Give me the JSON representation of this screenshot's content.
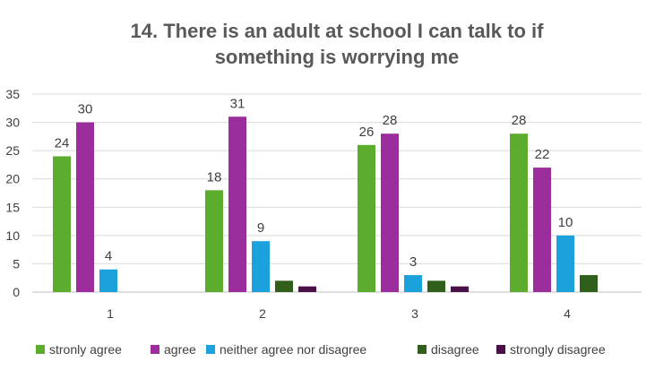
{
  "chart_data": {
    "type": "bar",
    "title_lines": [
      "14. There is an adult at school I can talk to if",
      "something is worrying me"
    ],
    "categories": [
      "1",
      "2",
      "3",
      "4"
    ],
    "ylim": [
      0,
      35
    ],
    "yticks": [
      0,
      5,
      10,
      15,
      20,
      25,
      30,
      35
    ],
    "grid": true,
    "legend_position": "bottom",
    "series": [
      {
        "name": "stronly agree",
        "color": "#5cac2e",
        "values": [
          24,
          18,
          26,
          28
        ]
      },
      {
        "name": "agree",
        "color": "#9c2d9c",
        "values": [
          30,
          31,
          28,
          22
        ]
      },
      {
        "name": "neither agree nor disagree",
        "color": "#1ba1dc",
        "values": [
          4,
          9,
          3,
          10
        ]
      },
      {
        "name": "disagree",
        "color": "#2f5f1a",
        "values": [
          null,
          2,
          2,
          3
        ]
      },
      {
        "name": "strongly disagree",
        "color": "#4b1048",
        "values": [
          null,
          1,
          1,
          null
        ]
      }
    ],
    "data_labels": [
      {
        "category": "1",
        "series": "stronly agree",
        "text": "24"
      },
      {
        "category": "1",
        "series": "agree",
        "text": "30"
      },
      {
        "category": "1",
        "series": "neither agree nor disagree",
        "text": "4"
      },
      {
        "category": "2",
        "series": "stronly agree",
        "text": "18"
      },
      {
        "category": "2",
        "series": "agree",
        "text": "31"
      },
      {
        "category": "2",
        "series": "neither agree nor disagree",
        "text": "9"
      },
      {
        "category": "3",
        "series": "stronly agree",
        "text": "26"
      },
      {
        "category": "3",
        "series": "agree",
        "text": "28"
      },
      {
        "category": "3",
        "series": "neither agree nor disagree",
        "text": "3"
      },
      {
        "category": "4",
        "series": "stronly agree",
        "text": "28"
      },
      {
        "category": "4",
        "series": "agree",
        "text": "22"
      },
      {
        "category": "4",
        "series": "neither agree nor disagree",
        "text": "10"
      }
    ]
  }
}
